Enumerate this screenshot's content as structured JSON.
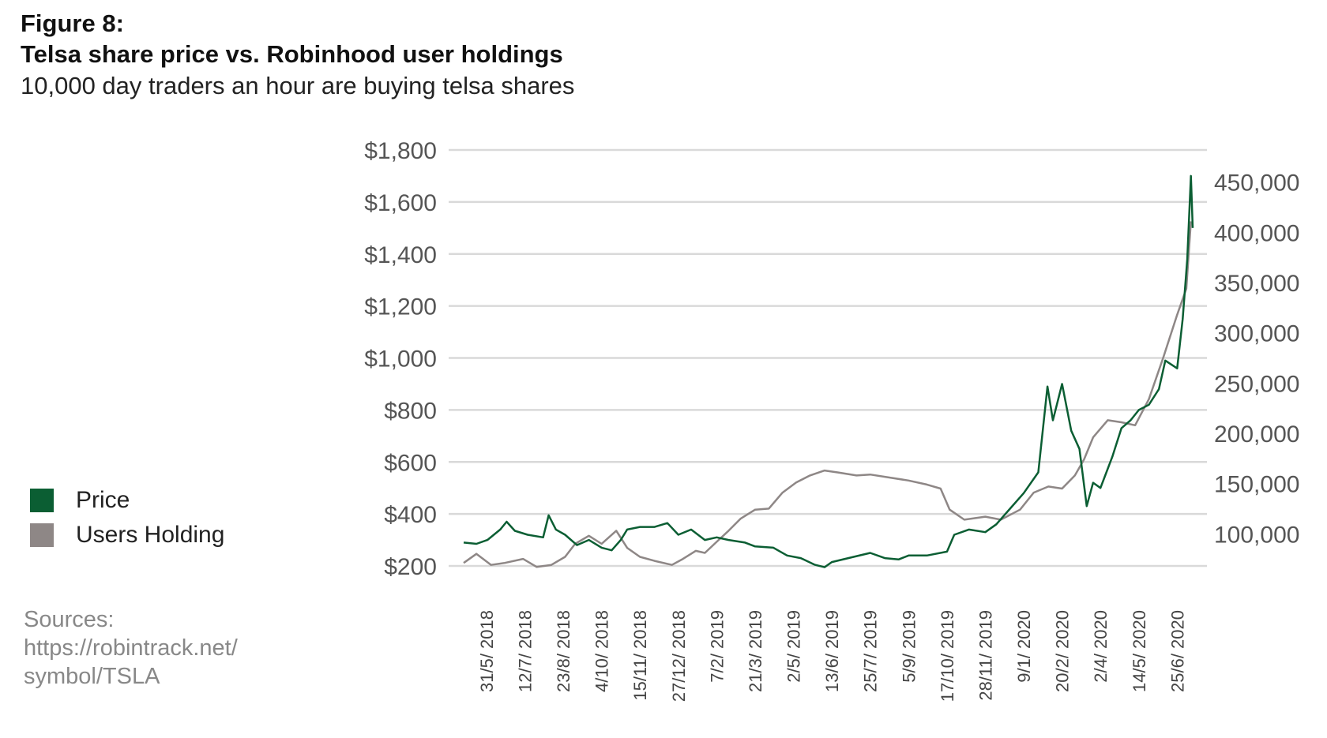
{
  "figure_label": "Figure 8:",
  "title": "Telsa share price vs. Robinhood user holdings",
  "subtitle": "10,000 day traders an hour are buying telsa shares",
  "sources": [
    "Sources:",
    "https://robintrack.net/",
    "symbol/TSLA"
  ],
  "colors": {
    "price": "#0b5e33",
    "users": "#8e8786",
    "grid": "#d9d9d9"
  },
  "chart_data": {
    "type": "line",
    "title": "Telsa share price vs. Robinhood user holdings",
    "legend": [
      "Price",
      "Users Holding"
    ],
    "legend_placement": "left",
    "grid": true,
    "y_left": {
      "ylim": [
        200,
        1800
      ],
      "ticks": [
        200,
        400,
        600,
        800,
        1000,
        1200,
        1400,
        1600,
        1800
      ],
      "tick_labels": [
        "$200",
        "$400",
        "$600",
        "$800",
        "$1,000",
        "$1,200",
        "$1,400",
        "$1,600",
        "$1,800"
      ]
    },
    "y_right": {
      "ylim": [
        68000,
        482000
      ],
      "ticks": [
        100000,
        150000,
        200000,
        250000,
        300000,
        350000,
        400000,
        450000
      ],
      "tick_labels": [
        "100,000",
        "150,000",
        "200,000",
        "250,000",
        "300,000",
        "350,000",
        "400,000",
        "450,000"
      ]
    },
    "x_range": [
      "2018-05-06",
      "2020-07-12"
    ],
    "x_ticks": [
      "2018-05-31",
      "2018-07-12",
      "2018-08-23",
      "2018-10-04",
      "2018-11-15",
      "2018-12-27",
      "2019-02-07",
      "2019-03-21",
      "2019-05-02",
      "2019-06-13",
      "2019-07-25",
      "2019-09-05",
      "2019-10-17",
      "2019-11-28",
      "2020-01-09",
      "2020-02-20",
      "2020-04-02",
      "2020-05-14",
      "2020-06-25"
    ],
    "x_tick_labels": [
      "31/5/ 2018",
      "12/7/ 2018",
      "23/8/ 2018",
      "4/10/ 2018",
      "15/11/ 2018",
      "27/12/ 2018",
      "7/2/ 2019",
      "21/3/ 2019",
      "2/5/ 2019",
      "13/6/ 2019",
      "25/7/ 2019",
      "5/9/ 2019",
      "17/10/ 2019",
      "28/11/ 2019",
      "9/1/ 2020",
      "20/2/ 2020",
      "2/4/ 2020",
      "14/5/ 2020",
      "25/6/ 2020"
    ],
    "series": [
      {
        "name": "Price",
        "axis": "left",
        "points": [
          [
            "2018-05-06",
            290
          ],
          [
            "2018-05-20",
            285
          ],
          [
            "2018-06-01",
            300
          ],
          [
            "2018-06-15",
            340
          ],
          [
            "2018-06-22",
            370
          ],
          [
            "2018-07-01",
            335
          ],
          [
            "2018-07-15",
            320
          ],
          [
            "2018-08-01",
            310
          ],
          [
            "2018-08-07",
            395
          ],
          [
            "2018-08-15",
            340
          ],
          [
            "2018-08-25",
            320
          ],
          [
            "2018-09-07",
            280
          ],
          [
            "2018-09-20",
            300
          ],
          [
            "2018-10-04",
            270
          ],
          [
            "2018-10-15",
            260
          ],
          [
            "2018-10-25",
            300
          ],
          [
            "2018-11-01",
            340
          ],
          [
            "2018-11-15",
            350
          ],
          [
            "2018-12-01",
            350
          ],
          [
            "2018-12-15",
            365
          ],
          [
            "2018-12-27",
            320
          ],
          [
            "2019-01-10",
            340
          ],
          [
            "2019-01-25",
            300
          ],
          [
            "2019-02-07",
            310
          ],
          [
            "2019-02-20",
            300
          ],
          [
            "2019-03-10",
            290
          ],
          [
            "2019-03-21",
            275
          ],
          [
            "2019-04-10",
            270
          ],
          [
            "2019-04-25",
            240
          ],
          [
            "2019-05-10",
            230
          ],
          [
            "2019-05-25",
            205
          ],
          [
            "2019-06-05",
            195
          ],
          [
            "2019-06-13",
            215
          ],
          [
            "2019-07-01",
            230
          ],
          [
            "2019-07-25",
            250
          ],
          [
            "2019-08-10",
            230
          ],
          [
            "2019-08-25",
            225
          ],
          [
            "2019-09-05",
            240
          ],
          [
            "2019-09-25",
            240
          ],
          [
            "2019-10-17",
            255
          ],
          [
            "2019-10-25",
            320
          ],
          [
            "2019-11-10",
            340
          ],
          [
            "2019-11-28",
            330
          ],
          [
            "2019-12-10",
            360
          ],
          [
            "2019-12-25",
            420
          ],
          [
            "2020-01-09",
            480
          ],
          [
            "2020-01-25",
            560
          ],
          [
            "2020-02-04",
            890
          ],
          [
            "2020-02-10",
            760
          ],
          [
            "2020-02-20",
            900
          ],
          [
            "2020-03-01",
            720
          ],
          [
            "2020-03-10",
            650
          ],
          [
            "2020-03-18",
            430
          ],
          [
            "2020-03-25",
            520
          ],
          [
            "2020-04-02",
            500
          ],
          [
            "2020-04-15",
            620
          ],
          [
            "2020-04-25",
            730
          ],
          [
            "2020-05-05",
            760
          ],
          [
            "2020-05-14",
            800
          ],
          [
            "2020-05-25",
            820
          ],
          [
            "2020-06-05",
            880
          ],
          [
            "2020-06-12",
            990
          ],
          [
            "2020-06-25",
            960
          ],
          [
            "2020-07-01",
            1150
          ],
          [
            "2020-07-06",
            1380
          ],
          [
            "2020-07-10",
            1700
          ],
          [
            "2020-07-12",
            1500
          ]
        ]
      },
      {
        "name": "Users Holding",
        "axis": "right",
        "points": [
          [
            "2018-05-06",
            71000
          ],
          [
            "2018-05-20",
            80000
          ],
          [
            "2018-06-05",
            69000
          ],
          [
            "2018-06-20",
            71000
          ],
          [
            "2018-07-10",
            75000
          ],
          [
            "2018-07-25",
            67000
          ],
          [
            "2018-08-10",
            69000
          ],
          [
            "2018-08-25",
            77000
          ],
          [
            "2018-09-05",
            90000
          ],
          [
            "2018-09-20",
            98000
          ],
          [
            "2018-10-04",
            90000
          ],
          [
            "2018-10-20",
            103000
          ],
          [
            "2018-11-01",
            86000
          ],
          [
            "2018-11-15",
            77000
          ],
          [
            "2018-12-01",
            73000
          ],
          [
            "2018-12-20",
            69000
          ],
          [
            "2019-01-01",
            75000
          ],
          [
            "2019-01-15",
            83000
          ],
          [
            "2019-01-25",
            81000
          ],
          [
            "2019-02-07",
            92000
          ],
          [
            "2019-02-20",
            103000
          ],
          [
            "2019-03-05",
            115000
          ],
          [
            "2019-03-21",
            124000
          ],
          [
            "2019-04-05",
            125000
          ],
          [
            "2019-04-20",
            141000
          ],
          [
            "2019-05-05",
            151000
          ],
          [
            "2019-05-20",
            158000
          ],
          [
            "2019-06-05",
            163000
          ],
          [
            "2019-06-20",
            161000
          ],
          [
            "2019-07-10",
            158000
          ],
          [
            "2019-07-25",
            159000
          ],
          [
            "2019-08-15",
            156000
          ],
          [
            "2019-09-05",
            153000
          ],
          [
            "2019-09-25",
            149000
          ],
          [
            "2019-10-10",
            145000
          ],
          [
            "2019-10-20",
            124000
          ],
          [
            "2019-11-05",
            114000
          ],
          [
            "2019-11-28",
            117000
          ],
          [
            "2019-12-15",
            114000
          ],
          [
            "2020-01-05",
            124000
          ],
          [
            "2020-01-20",
            141000
          ],
          [
            "2020-02-05",
            147000
          ],
          [
            "2020-02-20",
            145000
          ],
          [
            "2020-03-05",
            158000
          ],
          [
            "2020-03-15",
            174000
          ],
          [
            "2020-03-25",
            196000
          ],
          [
            "2020-04-10",
            213000
          ],
          [
            "2020-04-25",
            211000
          ],
          [
            "2020-05-10",
            208000
          ],
          [
            "2020-05-25",
            234000
          ],
          [
            "2020-06-10",
            276000
          ],
          [
            "2020-06-25",
            318000
          ],
          [
            "2020-07-05",
            344000
          ],
          [
            "2020-07-10",
            411000
          ]
        ]
      }
    ]
  }
}
